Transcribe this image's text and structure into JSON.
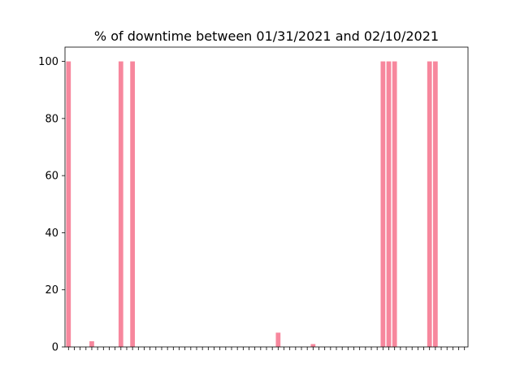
{
  "chart_data": {
    "type": "bar",
    "title": "% of downtime between 01/31/2021 and 02/10/2021",
    "xlabel": "",
    "ylabel": "",
    "ylim": [
      0,
      105
    ],
    "y_ticks": [
      0,
      20,
      40,
      60,
      80,
      100
    ],
    "grid": false,
    "x_tick_labels_visible": false,
    "bar_color": "#f7879d",
    "values": [
      100,
      0,
      0,
      0,
      2,
      0,
      0,
      0,
      0,
      100,
      0,
      100,
      0,
      0,
      0,
      0,
      0,
      0,
      0,
      0,
      0,
      0,
      0,
      0,
      0,
      0,
      0,
      0,
      0,
      0,
      0,
      0,
      0,
      0,
      0,
      0,
      5,
      0,
      0,
      0,
      0,
      0,
      1,
      0,
      0,
      0,
      0,
      0,
      0,
      0,
      0,
      0,
      0,
      0,
      100,
      100,
      100,
      0,
      0,
      0,
      0,
      0,
      100,
      100,
      0,
      0,
      0,
      0,
      0
    ]
  }
}
